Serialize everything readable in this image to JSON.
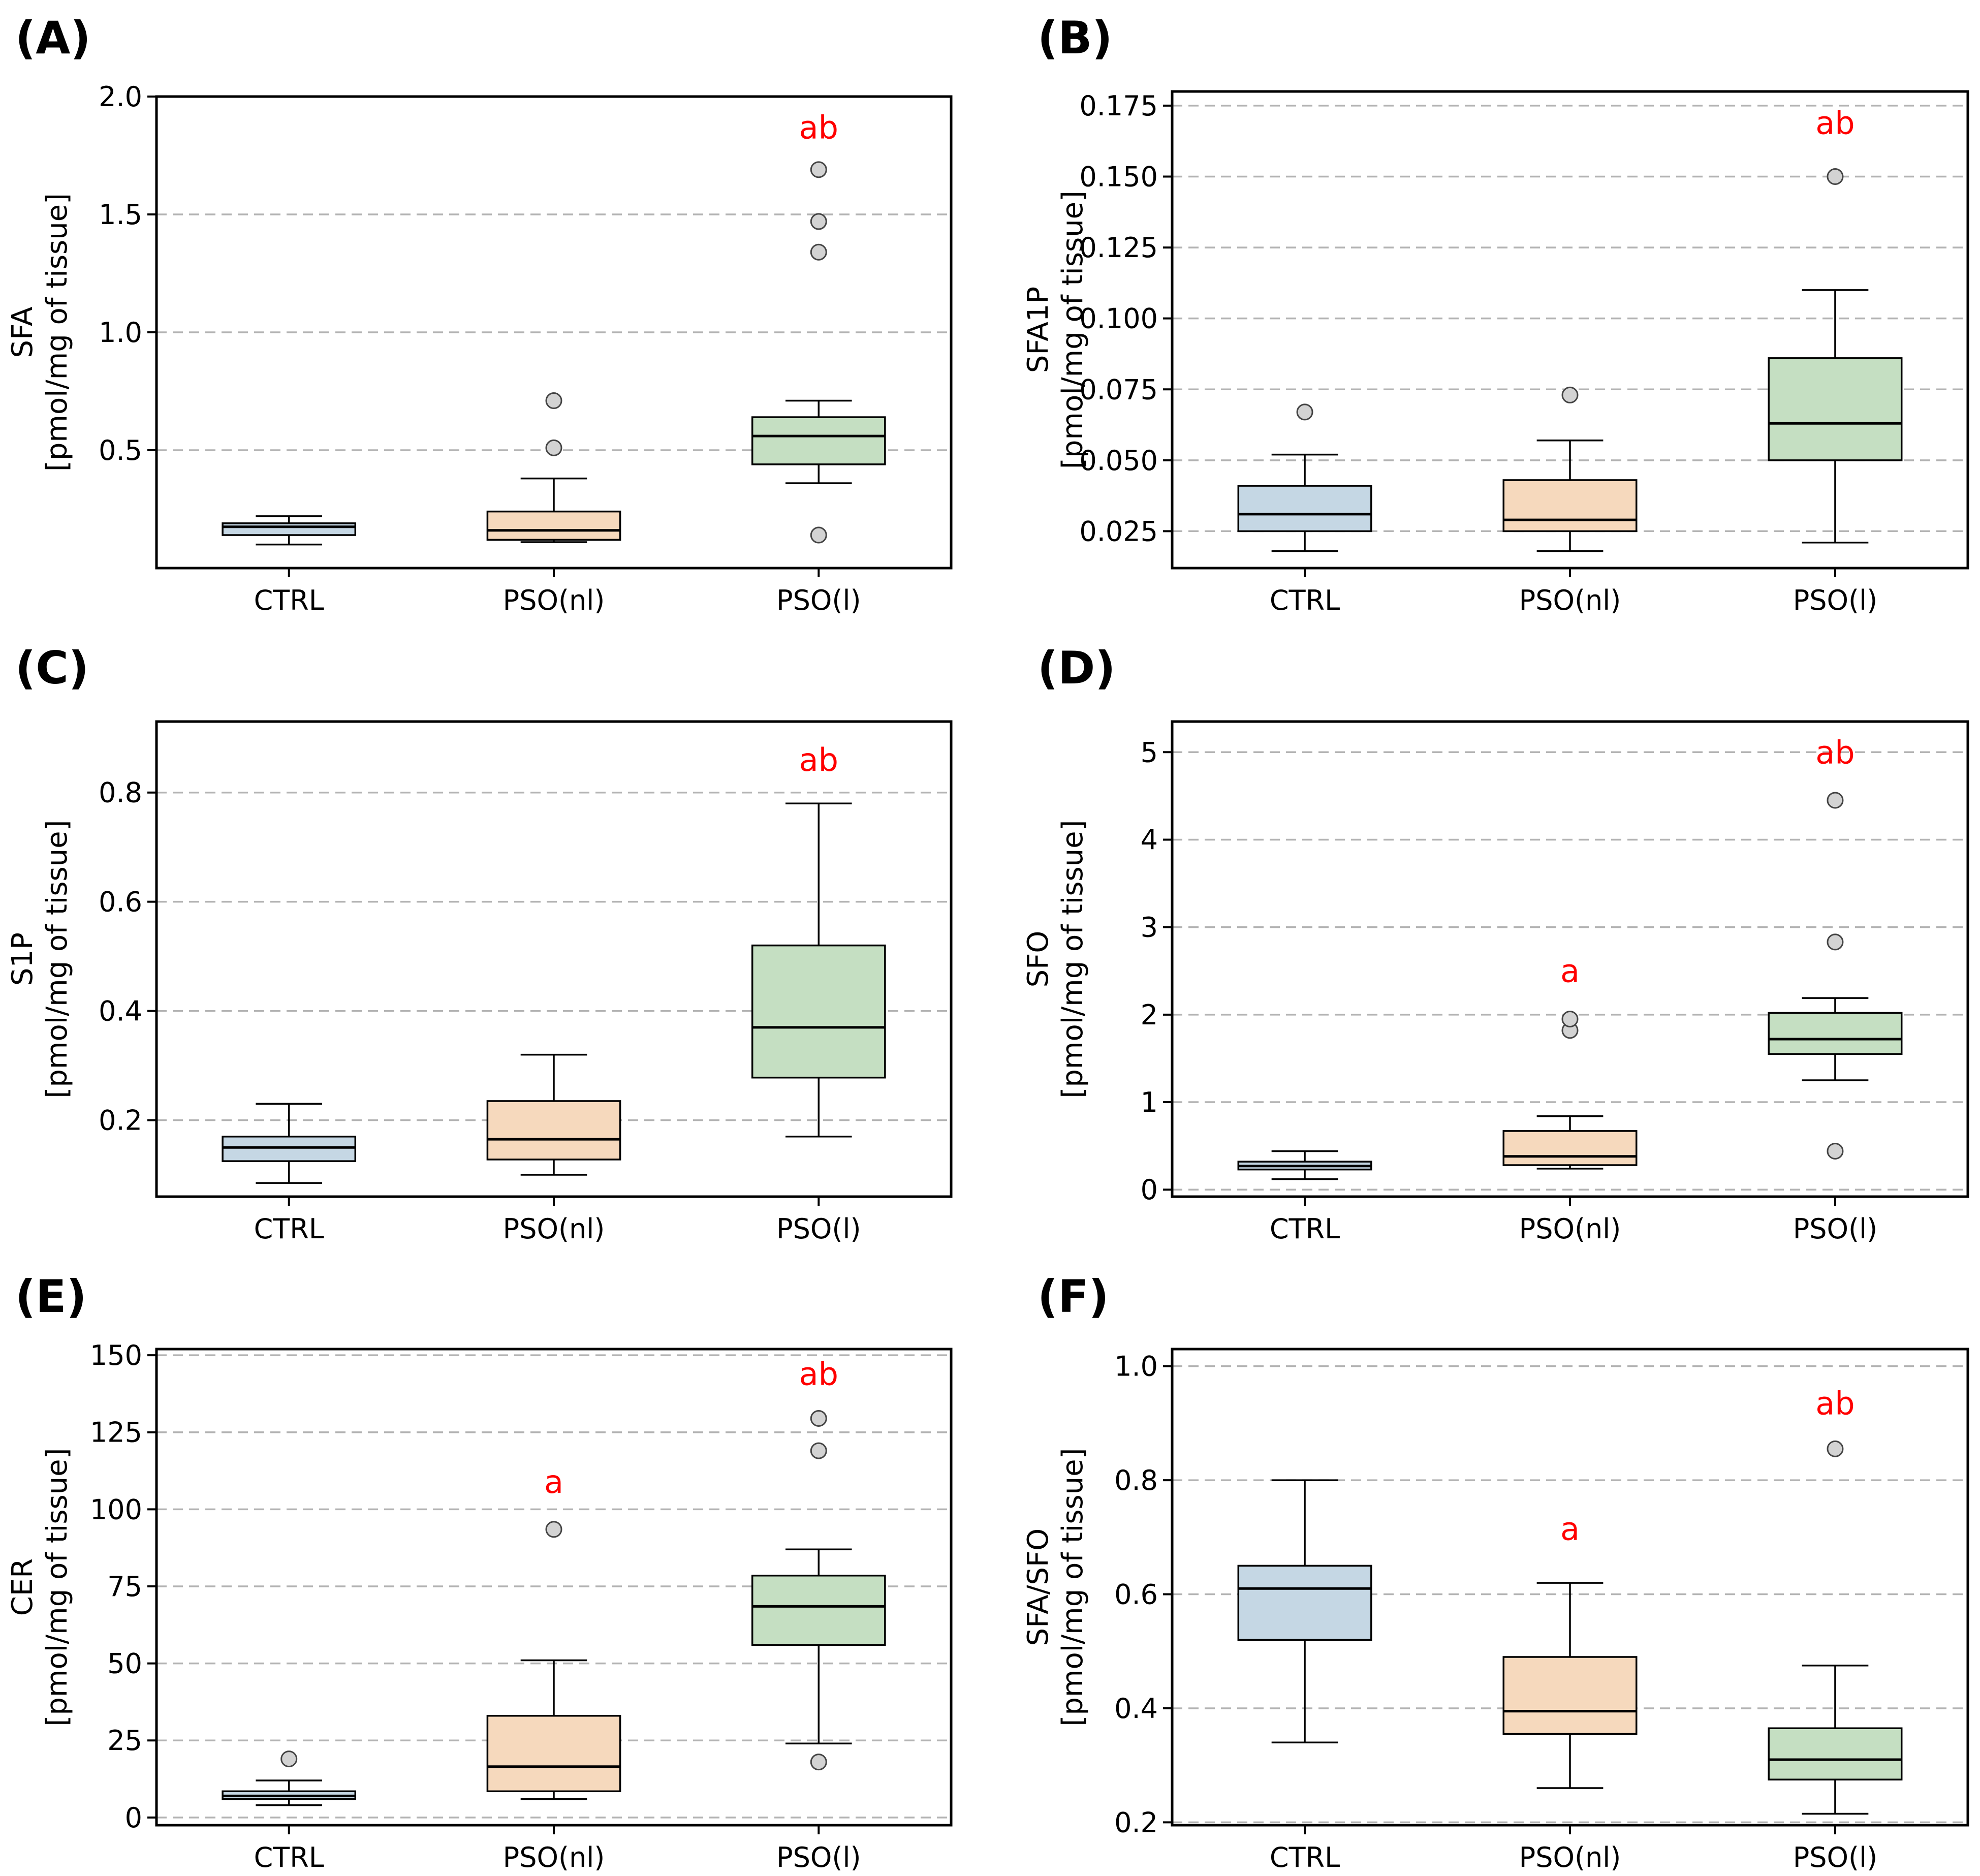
{
  "colors": {
    "CTRL": "#c5d7e4",
    "PSO(nl)": "#f6d9bd",
    "PSO(l)": "#c5dfc2",
    "significance": "#ff0000",
    "outlier": "#d3d3d3"
  },
  "chart_data": [
    {
      "id": "A",
      "panel_label": "(A)",
      "type": "box",
      "categories": [
        "CTRL",
        "PSO(nl)",
        "PSO(l)"
      ],
      "ylabel_lines": [
        "SFA",
        "[pmol/mg of tissue]"
      ],
      "ylim": [
        0.0,
        2.0
      ],
      "yticks": [
        0.5,
        1.0,
        1.5,
        2.0
      ],
      "ytick_labels": [
        "0.5",
        "1.0",
        "1.5",
        "2.0"
      ],
      "grid": "horizontal dashed",
      "boxes": [
        {
          "q1": 0.14,
          "median": 0.175,
          "q3": 0.19,
          "whisker_low": 0.1,
          "whisker_high": 0.22,
          "outliers": []
        },
        {
          "q1": 0.12,
          "median": 0.16,
          "q3": 0.24,
          "whisker_low": 0.11,
          "whisker_high": 0.38,
          "outliers": [
            0.51,
            0.71
          ]
        },
        {
          "q1": 0.44,
          "median": 0.56,
          "q3": 0.64,
          "whisker_low": 0.36,
          "whisker_high": 0.71,
          "outliers": [
            0.14,
            1.34,
            1.47,
            1.69
          ]
        }
      ],
      "annotations": [
        {
          "category": "PSO(l)",
          "text": "ab",
          "y": 1.87
        }
      ]
    },
    {
      "id": "B",
      "panel_label": "(B)",
      "type": "box",
      "categories": [
        "CTRL",
        "PSO(nl)",
        "PSO(l)"
      ],
      "ylabel_lines": [
        "SFA1P",
        "[pmol/mg of tissue]"
      ],
      "ylim": [
        0.012,
        0.18
      ],
      "yticks": [
        0.025,
        0.05,
        0.075,
        0.1,
        0.125,
        0.15,
        0.175
      ],
      "ytick_labels": [
        "0.025",
        "0.050",
        "0.075",
        "0.100",
        "0.125",
        "0.150",
        "0.175"
      ],
      "grid": "horizontal dashed",
      "boxes": [
        {
          "q1": 0.025,
          "median": 0.031,
          "q3": 0.041,
          "whisker_low": 0.018,
          "whisker_high": 0.052,
          "outliers": [
            0.067
          ]
        },
        {
          "q1": 0.025,
          "median": 0.029,
          "q3": 0.043,
          "whisker_low": 0.018,
          "whisker_high": 0.057,
          "outliers": [
            0.073
          ]
        },
        {
          "q1": 0.05,
          "median": 0.063,
          "q3": 0.086,
          "whisker_low": 0.021,
          "whisker_high": 0.11,
          "outliers": [
            0.15
          ]
        }
      ],
      "annotations": [
        {
          "category": "PSO(l)",
          "text": "ab",
          "y": 0.169
        }
      ]
    },
    {
      "id": "C",
      "panel_label": "(C)",
      "type": "box",
      "categories": [
        "CTRL",
        "PSO(nl)",
        "PSO(l)"
      ],
      "ylabel_lines": [
        "S1P",
        "[pmol/mg of tissue]"
      ],
      "ylim": [
        0.06,
        0.93
      ],
      "yticks": [
        0.2,
        0.4,
        0.6,
        0.8
      ],
      "ytick_labels": [
        "0.2",
        "0.4",
        "0.6",
        "0.8"
      ],
      "grid": "horizontal dashed",
      "boxes": [
        {
          "q1": 0.125,
          "median": 0.15,
          "q3": 0.17,
          "whisker_low": 0.085,
          "whisker_high": 0.23,
          "outliers": []
        },
        {
          "q1": 0.128,
          "median": 0.165,
          "q3": 0.235,
          "whisker_low": 0.1,
          "whisker_high": 0.32,
          "outliers": []
        },
        {
          "q1": 0.278,
          "median": 0.37,
          "q3": 0.52,
          "whisker_low": 0.17,
          "whisker_high": 0.78,
          "outliers": []
        }
      ],
      "annotations": [
        {
          "category": "PSO(l)",
          "text": "ab",
          "y": 0.86
        }
      ]
    },
    {
      "id": "D",
      "panel_label": "(D)",
      "type": "box",
      "categories": [
        "CTRL",
        "PSO(nl)",
        "PSO(l)"
      ],
      "ylabel_lines": [
        "SFO",
        "[pmol/mg of tissue]"
      ],
      "ylim": [
        -0.08,
        5.35
      ],
      "yticks": [
        0,
        1,
        2,
        3,
        4,
        5
      ],
      "ytick_labels": [
        "0",
        "1",
        "2",
        "3",
        "4",
        "5"
      ],
      "grid": "horizontal dashed",
      "boxes": [
        {
          "q1": 0.23,
          "median": 0.27,
          "q3": 0.32,
          "whisker_low": 0.12,
          "whisker_high": 0.44,
          "outliers": []
        },
        {
          "q1": 0.28,
          "median": 0.38,
          "q3": 0.67,
          "whisker_low": 0.24,
          "whisker_high": 0.84,
          "outliers": [
            1.82,
            1.95
          ]
        },
        {
          "q1": 1.55,
          "median": 1.72,
          "q3": 2.02,
          "whisker_low": 1.25,
          "whisker_high": 2.19,
          "outliers": [
            0.44,
            2.83,
            4.45
          ]
        }
      ],
      "annotations": [
        {
          "category": "PSO(nl)",
          "text": "a",
          "y": 2.5
        },
        {
          "category": "PSO(l)",
          "text": "ab",
          "y": 5.0
        }
      ]
    },
    {
      "id": "E",
      "panel_label": "(E)",
      "type": "box",
      "categories": [
        "CTRL",
        "PSO(nl)",
        "PSO(l)"
      ],
      "ylabel_lines": [
        "CER",
        "[pmol/mg of tissue]"
      ],
      "ylim": [
        -2.5,
        152
      ],
      "yticks": [
        0,
        25,
        50,
        75,
        100,
        125,
        150
      ],
      "ytick_labels": [
        "0",
        "25",
        "50",
        "75",
        "100",
        "125",
        "150"
      ],
      "grid": "horizontal dashed",
      "boxes": [
        {
          "q1": 6.0,
          "median": 7.0,
          "q3": 8.5,
          "whisker_low": 4.0,
          "whisker_high": 12.0,
          "outliers": [
            19.0
          ]
        },
        {
          "q1": 8.5,
          "median": 16.5,
          "q3": 33.0,
          "whisker_low": 6.0,
          "whisker_high": 51.0,
          "outliers": [
            93.5
          ]
        },
        {
          "q1": 56.0,
          "median": 68.5,
          "q3": 78.5,
          "whisker_low": 24.0,
          "whisker_high": 87.0,
          "outliers": [
            18.0,
            119.0,
            129.5
          ]
        }
      ],
      "annotations": [
        {
          "category": "PSO(nl)",
          "text": "a",
          "y": 109
        },
        {
          "category": "PSO(l)",
          "text": "ab",
          "y": 144
        }
      ]
    },
    {
      "id": "F",
      "panel_label": "(F)",
      "type": "box",
      "categories": [
        "CTRL",
        "PSO(nl)",
        "PSO(l)"
      ],
      "ylabel_lines": [
        "SFA/SFO",
        "[pmol/mg of tissue]"
      ],
      "ylim": [
        0.195,
        1.03
      ],
      "yticks": [
        0.2,
        0.4,
        0.6,
        0.8,
        1.0
      ],
      "ytick_labels": [
        "0.2",
        "0.4",
        "0.6",
        "0.8",
        "1.0"
      ],
      "grid": "horizontal dashed",
      "boxes": [
        {
          "q1": 0.52,
          "median": 0.61,
          "q3": 0.65,
          "whisker_low": 0.34,
          "whisker_high": 0.8,
          "outliers": []
        },
        {
          "q1": 0.355,
          "median": 0.395,
          "q3": 0.49,
          "whisker_low": 0.26,
          "whisker_high": 0.62,
          "outliers": []
        },
        {
          "q1": 0.275,
          "median": 0.31,
          "q3": 0.365,
          "whisker_low": 0.215,
          "whisker_high": 0.475,
          "outliers": [
            0.855
          ]
        }
      ],
      "annotations": [
        {
          "category": "PSO(nl)",
          "text": "a",
          "y": 0.715
        },
        {
          "category": "PSO(l)",
          "text": "ab",
          "y": 0.935
        }
      ]
    }
  ]
}
